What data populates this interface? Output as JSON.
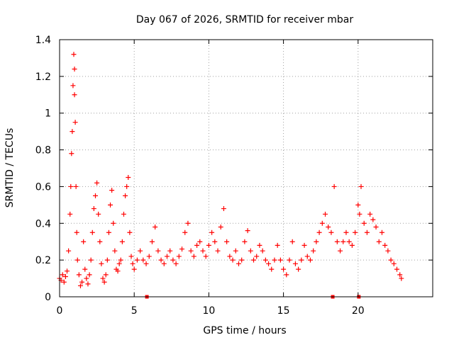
{
  "chart_data": {
    "type": "scatter",
    "title": "Day 067 of 2026, SRMTID for receiver mbar",
    "xlabel": "GPS time / hours",
    "ylabel": "SRMTID / TECUs",
    "xlim": [
      0,
      25
    ],
    "ylim": [
      0,
      1.4
    ],
    "xticks": [
      0,
      5,
      10,
      15,
      20
    ],
    "xtick_labels": [
      "0",
      "5",
      "10",
      "15",
      "20"
    ],
    "yticks": [
      0,
      0.2,
      0.4,
      0.6,
      0.8,
      1,
      1.2,
      1.4
    ],
    "ytick_labels": [
      "0",
      "0.2",
      "0.4",
      "0.6",
      "0.8",
      "1",
      "1.2",
      "1.4"
    ],
    "grid": true,
    "marker": "plus",
    "color": "#ff0000",
    "series": [
      {
        "name": "SRMTID",
        "points": [
          [
            0.0,
            0.1
          ],
          [
            0.1,
            0.09
          ],
          [
            0.2,
            0.12
          ],
          [
            0.3,
            0.08
          ],
          [
            0.4,
            0.11
          ],
          [
            0.5,
            0.14
          ],
          [
            0.6,
            0.25
          ],
          [
            0.7,
            0.45
          ],
          [
            0.75,
            0.6
          ],
          [
            0.8,
            0.78
          ],
          [
            0.85,
            0.9
          ],
          [
            0.9,
            1.15
          ],
          [
            0.95,
            1.32
          ],
          [
            1.0,
            1.24
          ],
          [
            1.0,
            1.1
          ],
          [
            1.05,
            0.95
          ],
          [
            1.1,
            0.6
          ],
          [
            1.15,
            0.35
          ],
          [
            1.2,
            0.2
          ],
          [
            1.3,
            0.12
          ],
          [
            1.4,
            0.06
          ],
          [
            1.5,
            0.08
          ],
          [
            1.6,
            0.3
          ],
          [
            1.7,
            0.15
          ],
          [
            1.8,
            0.1
          ],
          [
            1.9,
            0.07
          ],
          [
            2.0,
            0.12
          ],
          [
            2.1,
            0.2
          ],
          [
            2.2,
            0.35
          ],
          [
            2.3,
            0.48
          ],
          [
            2.4,
            0.55
          ],
          [
            2.5,
            0.62
          ],
          [
            2.6,
            0.45
          ],
          [
            2.7,
            0.3
          ],
          [
            2.8,
            0.18
          ],
          [
            2.9,
            0.1
          ],
          [
            3.0,
            0.08
          ],
          [
            3.1,
            0.12
          ],
          [
            3.2,
            0.2
          ],
          [
            3.3,
            0.35
          ],
          [
            3.4,
            0.5
          ],
          [
            3.5,
            0.58
          ],
          [
            3.6,
            0.4
          ],
          [
            3.7,
            0.25
          ],
          [
            3.8,
            0.15
          ],
          [
            3.9,
            0.14
          ],
          [
            4.0,
            0.18
          ],
          [
            4.1,
            0.2
          ],
          [
            4.2,
            0.3
          ],
          [
            4.3,
            0.45
          ],
          [
            4.4,
            0.55
          ],
          [
            4.5,
            0.6
          ],
          [
            4.6,
            0.65
          ],
          [
            4.7,
            0.35
          ],
          [
            4.8,
            0.22
          ],
          [
            4.9,
            0.18
          ],
          [
            5.0,
            0.15
          ],
          [
            5.2,
            0.2
          ],
          [
            5.4,
            0.25
          ],
          [
            5.6,
            0.2
          ],
          [
            5.8,
            0.18
          ],
          [
            6.0,
            0.22
          ],
          [
            6.2,
            0.3
          ],
          [
            6.4,
            0.38
          ],
          [
            6.6,
            0.25
          ],
          [
            6.8,
            0.2
          ],
          [
            7.0,
            0.18
          ],
          [
            7.2,
            0.22
          ],
          [
            7.4,
            0.25
          ],
          [
            7.6,
            0.2
          ],
          [
            7.8,
            0.18
          ],
          [
            8.0,
            0.22
          ],
          [
            8.2,
            0.26
          ],
          [
            8.4,
            0.35
          ],
          [
            8.6,
            0.4
          ],
          [
            8.8,
            0.25
          ],
          [
            9.0,
            0.22
          ],
          [
            9.2,
            0.28
          ],
          [
            9.4,
            0.3
          ],
          [
            9.6,
            0.25
          ],
          [
            9.8,
            0.22
          ],
          [
            10.0,
            0.28
          ],
          [
            10.2,
            0.35
          ],
          [
            10.4,
            0.3
          ],
          [
            10.6,
            0.25
          ],
          [
            10.8,
            0.38
          ],
          [
            11.0,
            0.48
          ],
          [
            11.2,
            0.3
          ],
          [
            11.4,
            0.22
          ],
          [
            11.6,
            0.2
          ],
          [
            11.8,
            0.25
          ],
          [
            12.0,
            0.18
          ],
          [
            12.2,
            0.2
          ],
          [
            12.4,
            0.3
          ],
          [
            12.6,
            0.36
          ],
          [
            12.8,
            0.25
          ],
          [
            13.0,
            0.2
          ],
          [
            13.2,
            0.22
          ],
          [
            13.4,
            0.28
          ],
          [
            13.6,
            0.25
          ],
          [
            13.8,
            0.2
          ],
          [
            14.0,
            0.18
          ],
          [
            14.2,
            0.15
          ],
          [
            14.4,
            0.2
          ],
          [
            14.6,
            0.28
          ],
          [
            14.8,
            0.2
          ],
          [
            15.0,
            0.15
          ],
          [
            15.2,
            0.12
          ],
          [
            15.4,
            0.2
          ],
          [
            15.6,
            0.3
          ],
          [
            15.8,
            0.18
          ],
          [
            16.0,
            0.15
          ],
          [
            16.2,
            0.2
          ],
          [
            16.4,
            0.28
          ],
          [
            16.6,
            0.22
          ],
          [
            16.8,
            0.2
          ],
          [
            17.0,
            0.25
          ],
          [
            17.2,
            0.3
          ],
          [
            17.4,
            0.35
          ],
          [
            17.6,
            0.4
          ],
          [
            17.8,
            0.45
          ],
          [
            18.0,
            0.38
          ],
          [
            18.2,
            0.35
          ],
          [
            18.4,
            0.6
          ],
          [
            18.6,
            0.3
          ],
          [
            18.8,
            0.25
          ],
          [
            19.0,
            0.3
          ],
          [
            19.2,
            0.35
          ],
          [
            19.4,
            0.3
          ],
          [
            19.6,
            0.28
          ],
          [
            19.8,
            0.35
          ],
          [
            20.0,
            0.5
          ],
          [
            20.1,
            0.45
          ],
          [
            20.2,
            0.6
          ],
          [
            20.4,
            0.4
          ],
          [
            20.6,
            0.35
          ],
          [
            20.8,
            0.45
          ],
          [
            21.0,
            0.42
          ],
          [
            21.2,
            0.38
          ],
          [
            21.4,
            0.3
          ],
          [
            21.6,
            0.35
          ],
          [
            21.8,
            0.28
          ],
          [
            22.0,
            0.25
          ],
          [
            22.2,
            0.2
          ],
          [
            22.4,
            0.18
          ],
          [
            22.6,
            0.15
          ],
          [
            22.8,
            0.12
          ],
          [
            22.9,
            0.1
          ]
        ]
      }
    ],
    "axis_markers": {
      "symbol": "square",
      "x": [
        5.85,
        18.3,
        20.05
      ],
      "y": 0
    }
  }
}
